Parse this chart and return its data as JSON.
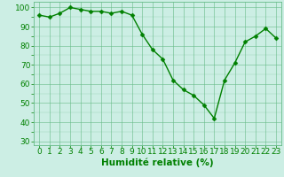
{
  "x": [
    0,
    1,
    2,
    3,
    4,
    5,
    6,
    7,
    8,
    9,
    10,
    11,
    12,
    13,
    14,
    15,
    16,
    17,
    18,
    19,
    20,
    21,
    22,
    23
  ],
  "y": [
    96,
    95,
    97,
    100,
    99,
    98,
    98,
    97,
    98,
    96,
    86,
    78,
    73,
    62,
    57,
    54,
    49,
    42,
    62,
    71,
    82,
    85,
    89,
    84
  ],
  "line_color": "#008000",
  "marker_color": "#008000",
  "background_color": "#cceee4",
  "grid_color": "#66bb88",
  "xlabel": "Humidité relative (%)",
  "xlabel_color": "#008000",
  "ylim": [
    28,
    103
  ],
  "xlim": [
    -0.5,
    23.5
  ],
  "yticks": [
    30,
    40,
    50,
    60,
    70,
    80,
    90,
    100
  ],
  "xtick_labels": [
    "0",
    "1",
    "2",
    "3",
    "4",
    "5",
    "6",
    "7",
    "8",
    "9",
    "10",
    "11",
    "12",
    "13",
    "14",
    "15",
    "16",
    "17",
    "18",
    "19",
    "20",
    "21",
    "22",
    "23"
  ],
  "tick_color": "#008000",
  "tick_fontsize": 6.5,
  "xlabel_fontsize": 7.5,
  "linewidth": 1.0,
  "markersize": 2.5,
  "marker": "D"
}
